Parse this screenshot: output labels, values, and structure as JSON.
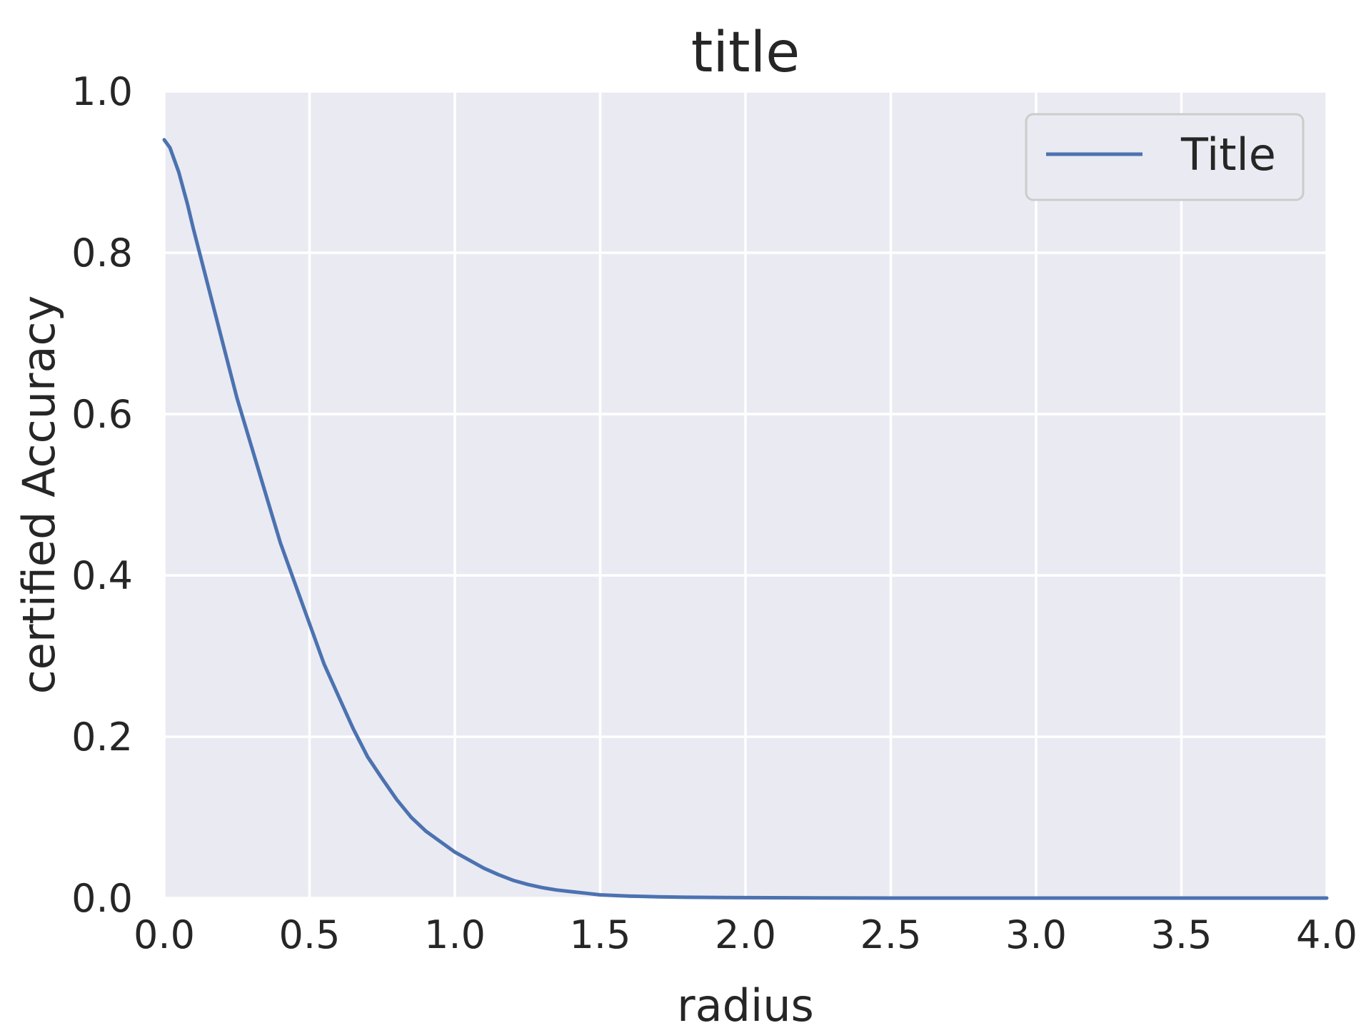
{
  "chart_data": {
    "type": "line",
    "title": "title",
    "xlabel": "radius",
    "ylabel": "certified Accuracy",
    "xlim": [
      0.0,
      4.0
    ],
    "ylim": [
      0.0,
      1.0
    ],
    "xticks": [
      "0.0",
      "0.5",
      "1.0",
      "1.5",
      "2.0",
      "2.5",
      "3.0",
      "3.5",
      "4.0"
    ],
    "yticks": [
      "0.0",
      "0.2",
      "0.4",
      "0.6",
      "0.8",
      "1.0"
    ],
    "grid": true,
    "legend_position": "top-right",
    "colors": {
      "plot_background": "#eaeaf2",
      "grid": "#ffffff",
      "line": "#4c72b0",
      "text": "#262626"
    },
    "series": [
      {
        "name": "Title",
        "x": [
          0.0,
          0.02,
          0.05,
          0.08,
          0.1,
          0.15,
          0.2,
          0.25,
          0.3,
          0.35,
          0.4,
          0.45,
          0.5,
          0.55,
          0.6,
          0.65,
          0.7,
          0.75,
          0.8,
          0.85,
          0.9,
          0.95,
          1.0,
          1.05,
          1.1,
          1.15,
          1.2,
          1.25,
          1.3,
          1.35,
          1.4,
          1.45,
          1.5,
          1.6,
          1.7,
          1.8,
          2.0,
          2.5,
          3.0,
          3.5,
          4.0
        ],
        "y": [
          0.94,
          0.93,
          0.9,
          0.86,
          0.83,
          0.76,
          0.69,
          0.62,
          0.56,
          0.5,
          0.44,
          0.39,
          0.34,
          0.29,
          0.25,
          0.21,
          0.175,
          0.148,
          0.122,
          0.1,
          0.083,
          0.07,
          0.057,
          0.047,
          0.037,
          0.029,
          0.022,
          0.017,
          0.013,
          0.01,
          0.008,
          0.006,
          0.004,
          0.0025,
          0.0015,
          0.001,
          0.0005,
          0.0,
          0.0,
          0.0,
          0.0
        ]
      }
    ]
  }
}
